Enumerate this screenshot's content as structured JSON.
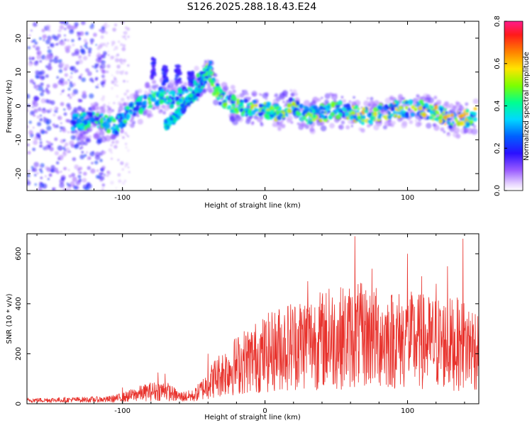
{
  "title": "S126.2025.288.18.43.E24",
  "chart_data": [
    {
      "type": "heatmap",
      "id": "spectrogram",
      "xlabel": "Height of straight line (km)",
      "ylabel": "Frequency (Hz)",
      "xlim": [
        -167,
        150
      ],
      "ylim": [
        -25,
        25
      ],
      "xticks": [
        -100,
        0,
        100
      ],
      "yticks": [
        -20,
        -10,
        0,
        10,
        20
      ],
      "colorbar": {
        "label": "Normalized spectral amplitude",
        "range": [
          0.0,
          0.8
        ],
        "ticks": [
          "0.0",
          "0.2",
          "0.4",
          "0.6",
          "0.8"
        ]
      },
      "ridge": {
        "x": [
          -135,
          -120,
          -105,
          -95,
          -85,
          -75,
          -65,
          -55,
          -45,
          -40,
          -35,
          -30,
          -20,
          -10,
          0,
          10,
          20,
          30,
          40,
          50,
          60,
          70,
          80,
          90,
          100,
          110,
          120,
          130,
          140,
          148
        ],
        "y": [
          -5,
          -4,
          -6,
          -2,
          1,
          3,
          2,
          3,
          8,
          10,
          5,
          2,
          0,
          -1,
          -1,
          -2,
          0,
          -3,
          -2,
          -1,
          -2,
          -3,
          -2,
          -1,
          -1,
          -1,
          -2,
          -4,
          -4,
          -3
        ]
      },
      "branch": {
        "x": [
          -70,
          -62,
          -55,
          -48,
          -42,
          -38
        ],
        "y": [
          -6,
          -3,
          1,
          4,
          8,
          12
        ]
      }
    },
    {
      "type": "line",
      "id": "snr",
      "xlabel": "Height of straight line (km)",
      "ylabel": "SNR (10 * v/v)",
      "xlim": [
        -167,
        150
      ],
      "ylim": [
        0,
        680
      ],
      "xticks": [
        -100,
        0,
        100
      ],
      "yticks": [
        0,
        200,
        400,
        600
      ],
      "series": [
        {
          "name": "SNR",
          "color": "#e8322c",
          "envelope_x": [
            -167,
            -110,
            -100,
            -90,
            -80,
            -70,
            -60,
            -50,
            -40,
            -35,
            -25,
            -15,
            -5,
            5,
            15,
            25,
            35,
            45,
            55,
            65,
            75,
            85,
            95,
            105,
            115,
            125,
            135,
            145,
            150
          ],
          "envelope_y": [
            18,
            25,
            35,
            55,
            70,
            75,
            40,
            45,
            110,
            150,
            200,
            240,
            270,
            300,
            330,
            350,
            360,
            370,
            380,
            390,
            380,
            370,
            365,
            360,
            350,
            345,
            340,
            330,
            320
          ],
          "peaks_x": [
            -100,
            -75,
            -70,
            -40,
            10,
            30,
            45,
            63,
            75,
            100,
            110,
            120,
            128,
            139
          ],
          "peaks_y": [
            65,
            125,
            120,
            200,
            370,
            490,
            460,
            670,
            540,
            600,
            510,
            480,
            550,
            660
          ]
        }
      ]
    }
  ]
}
